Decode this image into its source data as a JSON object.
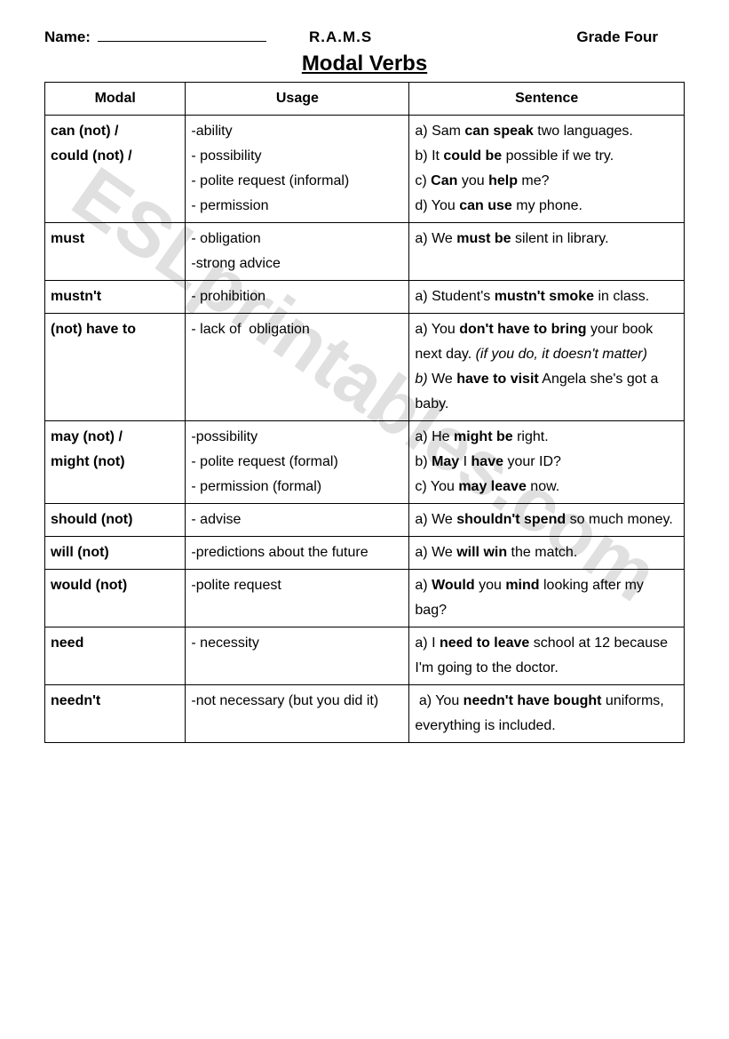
{
  "header": {
    "name_label": "Name:",
    "center": "R.A.M.S",
    "grade": "Grade Four"
  },
  "title": "Modal Verbs",
  "watermark": "ESLprintables.com",
  "columns": [
    "Modal",
    "Usage",
    "Sentence"
  ],
  "rows": [
    {
      "modal": "<span class='b'>can (not) /<br>could (not) /</span>",
      "usage": "-ability<br>- possibility<br>- polite request (informal)<br>- permission",
      "sentence": "a) Sam <span class='b'>can speak</span> two languages.<br>b) It <span class='b'>could be</span> possible if we try.<br>c) <span class='b'>Can</span> you <span class='b'>help</span> me?<br>d) You <span class='b'>can use</span> my phone."
    },
    {
      "modal": "<span class='b'>must</span>",
      "usage": "- obligation<br>-strong advice",
      "sentence": "a) We <span class='b'>must be</span> silent in library."
    },
    {
      "modal": "<span class='b'>mustn't</span>",
      "usage": "- prohibition",
      "sentence": "a) Student's <span class='b'>mustn't smoke</span> in class."
    },
    {
      "modal": "<span class='b'>(not) have to</span>",
      "usage": "- lack of &nbsp;obligation",
      "sentence": "a) You <span class='b'>don't have to bring</span> your book next day. <span class='i'>(if you do, it doesn't matter)</span><br><span class='i'>b)</span> We <span class='b'>have to visit</span> Angela she's got a baby."
    },
    {
      "modal": "<span class='b'>may (not) /<br>might (not)</span>",
      "usage": "-possibility<br>- polite request (formal)<br>- permission (formal)",
      "sentence": "a) He <span class='b'>might be</span> right.<br>b) <span class='b'>May</span> I <span class='b'>have</span> your ID?<br>c) You <span class='b'>may leave</span> now."
    },
    {
      "modal": "<span class='b'>should (not)</span>",
      "usage": "- advise",
      "sentence": "a) We <span class='b'>shouldn't spend</span> so much money."
    },
    {
      "modal": "<span class='b'>will (not)</span>",
      "usage": "-predictions about the future",
      "sentence": "a) We <span class='b'>will win</span> the match."
    },
    {
      "modal": "<span class='b'>would (not)</span>",
      "usage": "-polite request",
      "sentence": "a) <span class='b'>Would</span> you <span class='b'>mind</span> looking after my bag?"
    },
    {
      "modal": "<span class='b'>need</span>",
      "usage": "- necessity",
      "sentence": "a) I <span class='b'>need to leave</span> school at 12 because I'm going to the doctor."
    },
    {
      "modal": "<span class='b'>needn't</span>",
      "usage": "-not necessary (but you did it)",
      "sentence": "&nbsp;a) You <span class='b'>needn't have bought</span> uniforms, everything is included."
    }
  ]
}
